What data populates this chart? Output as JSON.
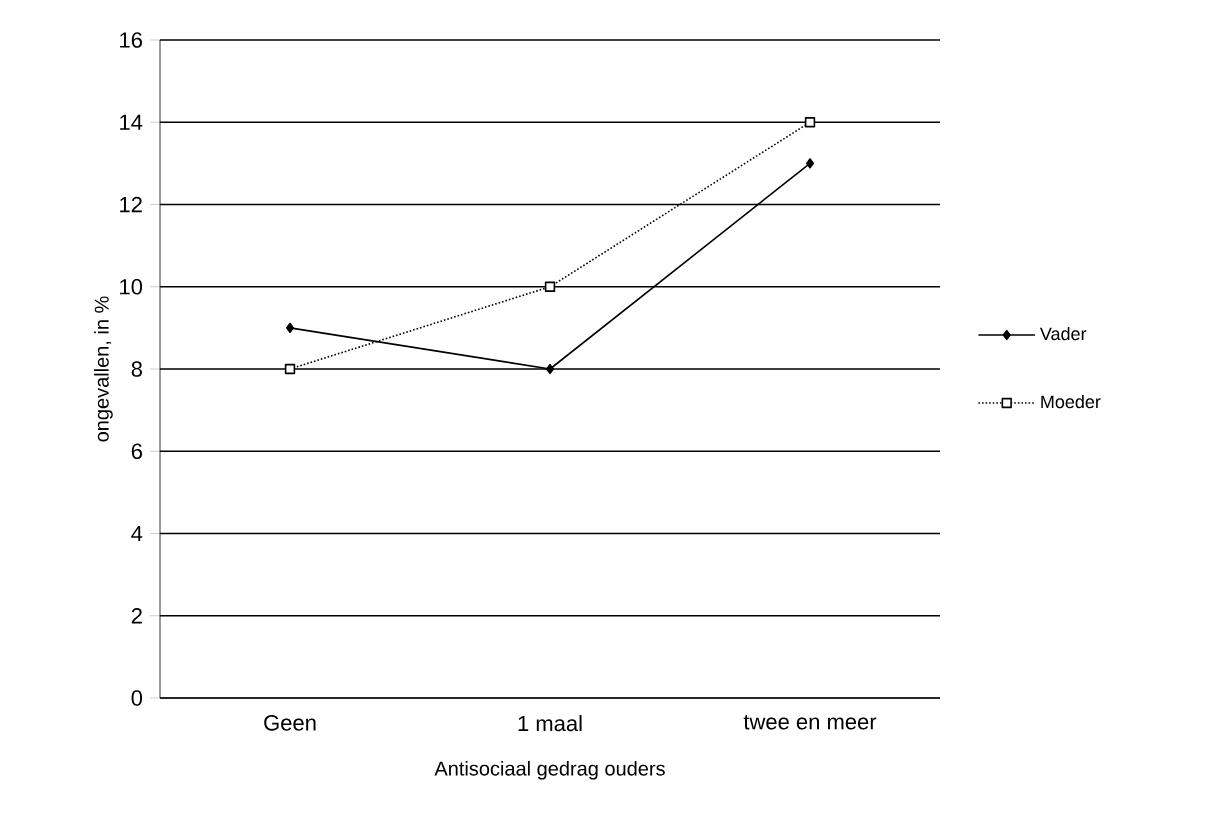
{
  "chart_data": {
    "type": "line",
    "xlabel": "Antisociaal gedrag ouders",
    "ylabel": "ongevallen, in %",
    "categories": [
      "Geen",
      "1 maal",
      "twee en meer"
    ],
    "series": [
      {
        "name": "Vader",
        "color": "#000000",
        "values": [
          9,
          8,
          13
        ],
        "marker": "diamond",
        "line_style": "solid"
      },
      {
        "name": "Moeder",
        "color": "#000000",
        "values": [
          8,
          10,
          14
        ],
        "marker": "square",
        "line_style": "dotted"
      }
    ],
    "ylim": [
      0,
      16
    ],
    "yticks": [
      0,
      2,
      4,
      6,
      8,
      10,
      12,
      14,
      16
    ],
    "grid": "y",
    "legend": "right"
  }
}
